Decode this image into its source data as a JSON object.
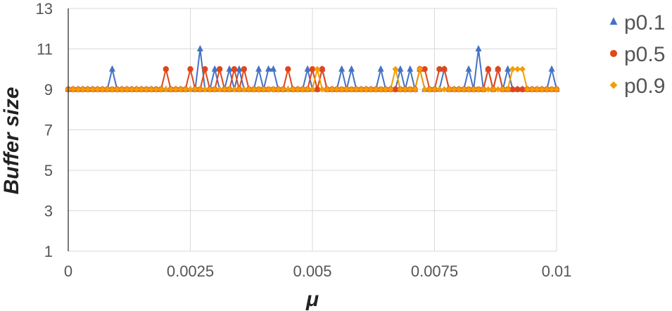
{
  "chart_data": {
    "type": "line",
    "title": "",
    "xlabel": "μ",
    "ylabel": "Buffer size",
    "xlim": [
      0,
      0.01
    ],
    "ylim": [
      1,
      13
    ],
    "x_ticks": [
      0,
      0.0025,
      0.005,
      0.0075,
      0.01
    ],
    "x_tick_labels": [
      "0",
      "0.0025",
      "0.005",
      "0.0075",
      "0.01"
    ],
    "y_ticks": [
      1,
      3,
      5,
      7,
      9,
      11,
      13
    ],
    "y_tick_labels": [
      "1",
      "3",
      "5",
      "7",
      "9",
      "11",
      "13"
    ],
    "grid": true,
    "legend_position": "right",
    "x_step": 0.0001,
    "x_count": 101,
    "baseline": 9,
    "series": [
      {
        "name": "p0.1",
        "color": "#4472C4",
        "marker": "triangle",
        "peaks": [
          [
            9,
            10
          ],
          [
            27,
            11
          ],
          [
            30,
            10
          ],
          [
            33,
            10
          ],
          [
            35,
            10
          ],
          [
            39,
            10
          ],
          [
            41,
            10
          ],
          [
            42,
            10
          ],
          [
            49,
            10
          ],
          [
            52,
            10
          ],
          [
            56,
            10
          ],
          [
            58,
            10
          ],
          [
            64,
            10
          ],
          [
            68,
            10
          ],
          [
            70,
            10
          ],
          [
            72,
            10
          ],
          [
            77,
            10
          ],
          [
            82,
            10
          ],
          [
            84,
            11
          ],
          [
            86,
            10
          ],
          [
            88,
            10
          ],
          [
            90,
            10
          ],
          [
            99,
            10
          ]
        ]
      },
      {
        "name": "p0.5",
        "color": "#E0461B",
        "marker": "circle",
        "peaks": [
          [
            20,
            10
          ],
          [
            25,
            10
          ],
          [
            28,
            10
          ],
          [
            31,
            10
          ],
          [
            34,
            10
          ],
          [
            36,
            10
          ],
          [
            45,
            10
          ],
          [
            50,
            10
          ],
          [
            52,
            10
          ],
          [
            72,
            10
          ],
          [
            73,
            10
          ],
          [
            76,
            10
          ],
          [
            77,
            10
          ],
          [
            86,
            10
          ],
          [
            88,
            10
          ]
        ]
      },
      {
        "name": "p0.9",
        "color": "#F59D00",
        "marker": "diamond",
        "peaks": [
          [
            51,
            10
          ],
          [
            67,
            10
          ],
          [
            72,
            10
          ],
          [
            91,
            10
          ],
          [
            92,
            10
          ],
          [
            93,
            10
          ]
        ]
      }
    ]
  }
}
